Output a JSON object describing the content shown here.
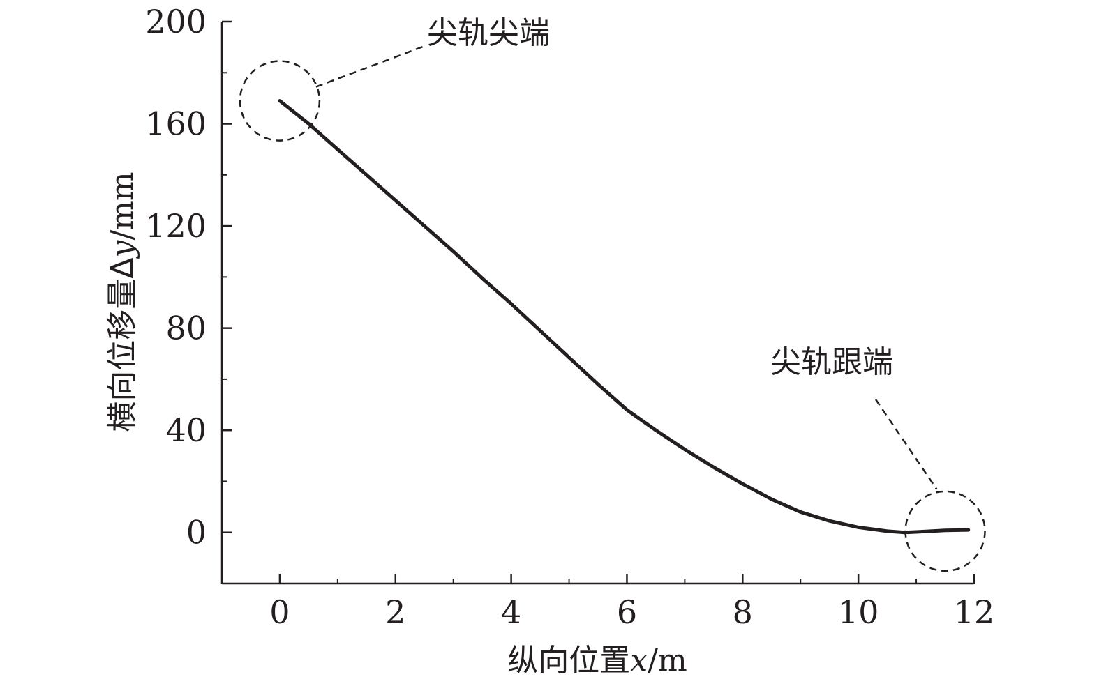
{
  "chart_data": {
    "type": "line",
    "xlabel_prefix": "纵向位置",
    "xlabel_var": "x",
    "xlabel_unit": "/m",
    "ylabel_prefix": "横向位移量Δ",
    "ylabel_var": "y",
    "ylabel_unit": "/mm",
    "xlim": [
      -1,
      12
    ],
    "ylim": [
      -20,
      200
    ],
    "xticks": [
      0,
      2,
      4,
      6,
      8,
      10,
      12
    ],
    "xticks_minor": [
      1,
      3,
      5,
      7,
      9,
      11
    ],
    "yticks": [
      0,
      40,
      80,
      120,
      160,
      200
    ],
    "yticks_minor": [
      20,
      60,
      100,
      140,
      180
    ],
    "grid": false,
    "series": [
      {
        "color": "#231f20",
        "x": [
          0,
          0.5,
          1,
          1.5,
          2,
          2.5,
          3,
          3.5,
          4,
          4.5,
          5,
          5.5,
          6,
          6.5,
          7,
          7.5,
          8,
          8.5,
          9,
          9.5,
          10,
          10.5,
          10.8,
          11,
          11.5,
          11.9
        ],
        "y": [
          169,
          160,
          150,
          140,
          130,
          120,
          110,
          99.5,
          89.5,
          79,
          68.5,
          58,
          48,
          40,
          32.5,
          25.5,
          19,
          13,
          8,
          4.5,
          2,
          0.5,
          0,
          0.2,
          0.8,
          1
        ]
      }
    ],
    "annotations": [
      {
        "text": "尖轨尖端",
        "target_x": 0,
        "target_y": 169
      },
      {
        "text": "尖轨跟端",
        "target_x": 11.5,
        "target_y": 0.5
      }
    ]
  }
}
